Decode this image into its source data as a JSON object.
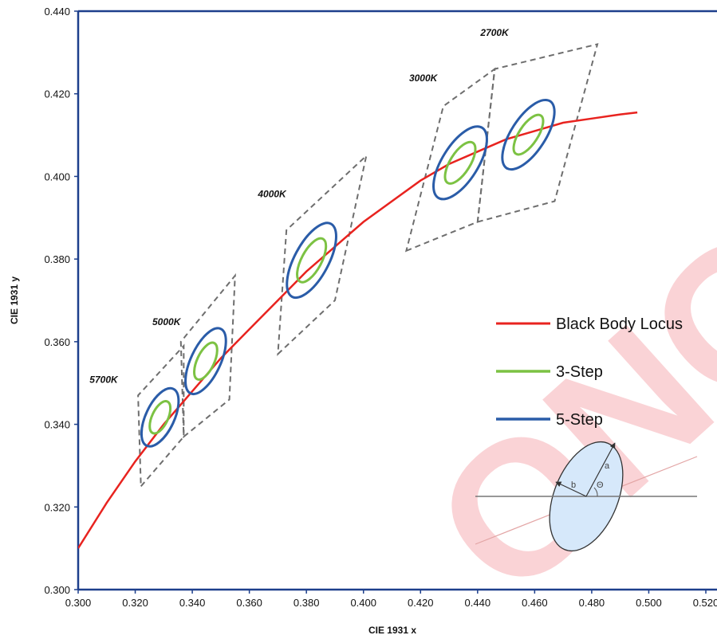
{
  "chart_data": {
    "type": "line",
    "xlabel": "CIE 1931 x",
    "ylabel": "CIE 1931 y",
    "xlim": [
      0.3,
      0.52
    ],
    "ylim": [
      0.3,
      0.44
    ],
    "x_ticks": [
      "0.300",
      "0.320",
      "0.340",
      "0.360",
      "0.380",
      "0.400",
      "0.420",
      "0.440",
      "0.460",
      "0.480",
      "0.500",
      "0.520"
    ],
    "y_ticks": [
      "0.300",
      "0.320",
      "0.340",
      "0.360",
      "0.380",
      "0.400",
      "0.420",
      "0.440"
    ],
    "colors": {
      "locus": "#e8231f",
      "step3": "#7cc243",
      "step5": "#2a5ca8",
      "box": "#6e6e6e",
      "axis": "#1d3f8c"
    },
    "series": [
      {
        "name": "Black Body Locus",
        "x": [
          0.3,
          0.31,
          0.32,
          0.33,
          0.34,
          0.35,
          0.36,
          0.37,
          0.38,
          0.39,
          0.4,
          0.41,
          0.42,
          0.43,
          0.44,
          0.45,
          0.46,
          0.47,
          0.48,
          0.49,
          0.496
        ],
        "y": [
          0.31,
          0.321,
          0.331,
          0.34,
          0.348,
          0.356,
          0.363,
          0.37,
          0.377,
          0.383,
          0.389,
          0.394,
          0.399,
          0.403,
          0.406,
          0.409,
          0.411,
          0.413,
          0.414,
          0.415,
          0.4155
        ]
      }
    ],
    "legend": [
      "Black Body Locus",
      "3-Step",
      "5-Step"
    ],
    "cct_regions": [
      {
        "label": "5700K",
        "cx": 0.3287,
        "cy": 0.3417,
        "step3_a": 0.0061,
        "step3_b": 0.0028,
        "step5_a": 0.011,
        "step5_b": 0.005,
        "angle": 65,
        "quad": [
          [
            0.322,
            0.325
          ],
          [
            0.337,
            0.337
          ],
          [
            0.337,
            0.359
          ],
          [
            0.321,
            0.347
          ]
        ]
      },
      {
        "label": "5000K",
        "cx": 0.3447,
        "cy": 0.3553,
        "step3_a": 0.007,
        "step3_b": 0.003,
        "step5_a": 0.0125,
        "step5_b": 0.0052,
        "angle": 65,
        "quad": [
          [
            0.337,
            0.337
          ],
          [
            0.353,
            0.346
          ],
          [
            0.355,
            0.376
          ],
          [
            0.336,
            0.36
          ]
        ]
      },
      {
        "label": "4000K",
        "cx": 0.3818,
        "cy": 0.3797,
        "step3_a": 0.0085,
        "step3_b": 0.0035,
        "step5_a": 0.0145,
        "step5_b": 0.006,
        "angle": 62,
        "quad": [
          [
            0.37,
            0.357
          ],
          [
            0.39,
            0.37
          ],
          [
            0.401,
            0.405
          ],
          [
            0.373,
            0.387
          ]
        ]
      },
      {
        "label": "3000K",
        "cx": 0.4339,
        "cy": 0.4033,
        "step3_a": 0.0083,
        "step3_b": 0.0035,
        "step5_a": 0.0145,
        "step5_b": 0.0063,
        "angle": 58,
        "quad": [
          [
            0.415,
            0.382
          ],
          [
            0.44,
            0.389
          ],
          [
            0.446,
            0.426
          ],
          [
            0.428,
            0.417
          ]
        ]
      },
      {
        "label": "2700K",
        "cx": 0.4578,
        "cy": 0.4101,
        "step3_a": 0.008,
        "step3_b": 0.0033,
        "step5_a": 0.014,
        "step5_b": 0.006,
        "angle": 57,
        "quad": [
          [
            0.44,
            0.389
          ],
          [
            0.467,
            0.394
          ],
          [
            0.482,
            0.432
          ],
          [
            0.446,
            0.426
          ]
        ]
      }
    ],
    "inset": {
      "labels": [
        "a",
        "b",
        "Θ"
      ]
    }
  },
  "watermark": {
    "text": "ONGE"
  }
}
